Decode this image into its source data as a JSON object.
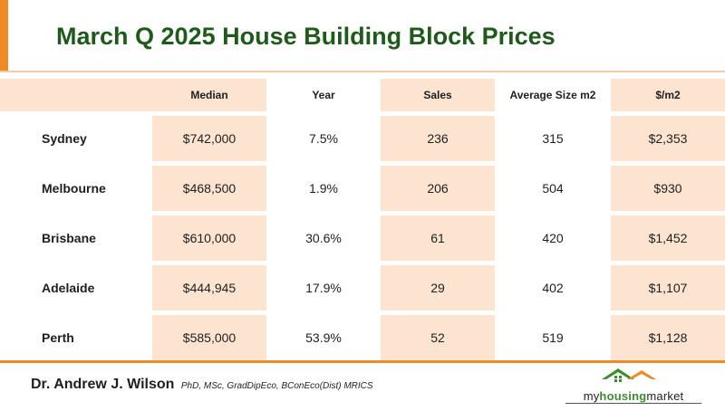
{
  "title": "March Q 2025 House Building Block Prices",
  "table": {
    "columns": [
      "",
      "Median",
      "Year",
      "Sales",
      "Average Size m2",
      "$/m2"
    ],
    "rows": [
      {
        "city": "Sydney",
        "median": "$742,000",
        "year": "7.5%",
        "sales": "236",
        "avg_size": "315",
        "per_m2": "$2,353"
      },
      {
        "city": "Melbourne",
        "median": "$468,500",
        "year": "1.9%",
        "sales": "206",
        "avg_size": "504",
        "per_m2": "$930"
      },
      {
        "city": "Brisbane",
        "median": "$610,000",
        "year": "30.6%",
        "sales": "61",
        "avg_size": "420",
        "per_m2": "$1,452"
      },
      {
        "city": "Adelaide",
        "median": "$444,945",
        "year": "17.9%",
        "sales": "29",
        "avg_size": "402",
        "per_m2": "$1,107"
      },
      {
        "city": "Perth",
        "median": "$585,000",
        "year": "53.9%",
        "sales": "52",
        "avg_size": "519",
        "per_m2": "$1,128"
      }
    ]
  },
  "footer": {
    "author_name": "Dr. Andrew J. Wilson",
    "author_credentials": "PhD, MSc, GradDipEco, BConEco(Dist) MRICS",
    "logo_text_1": "my",
    "logo_text_2": "housing",
    "logo_text_3": "market"
  },
  "colors": {
    "accent": "#f08a24",
    "title": "#1e5b1a",
    "cell_fill": "#fce4d0",
    "logo_green": "#3c8d2f"
  },
  "icons": [
    "house-roofs-logo-icon"
  ]
}
